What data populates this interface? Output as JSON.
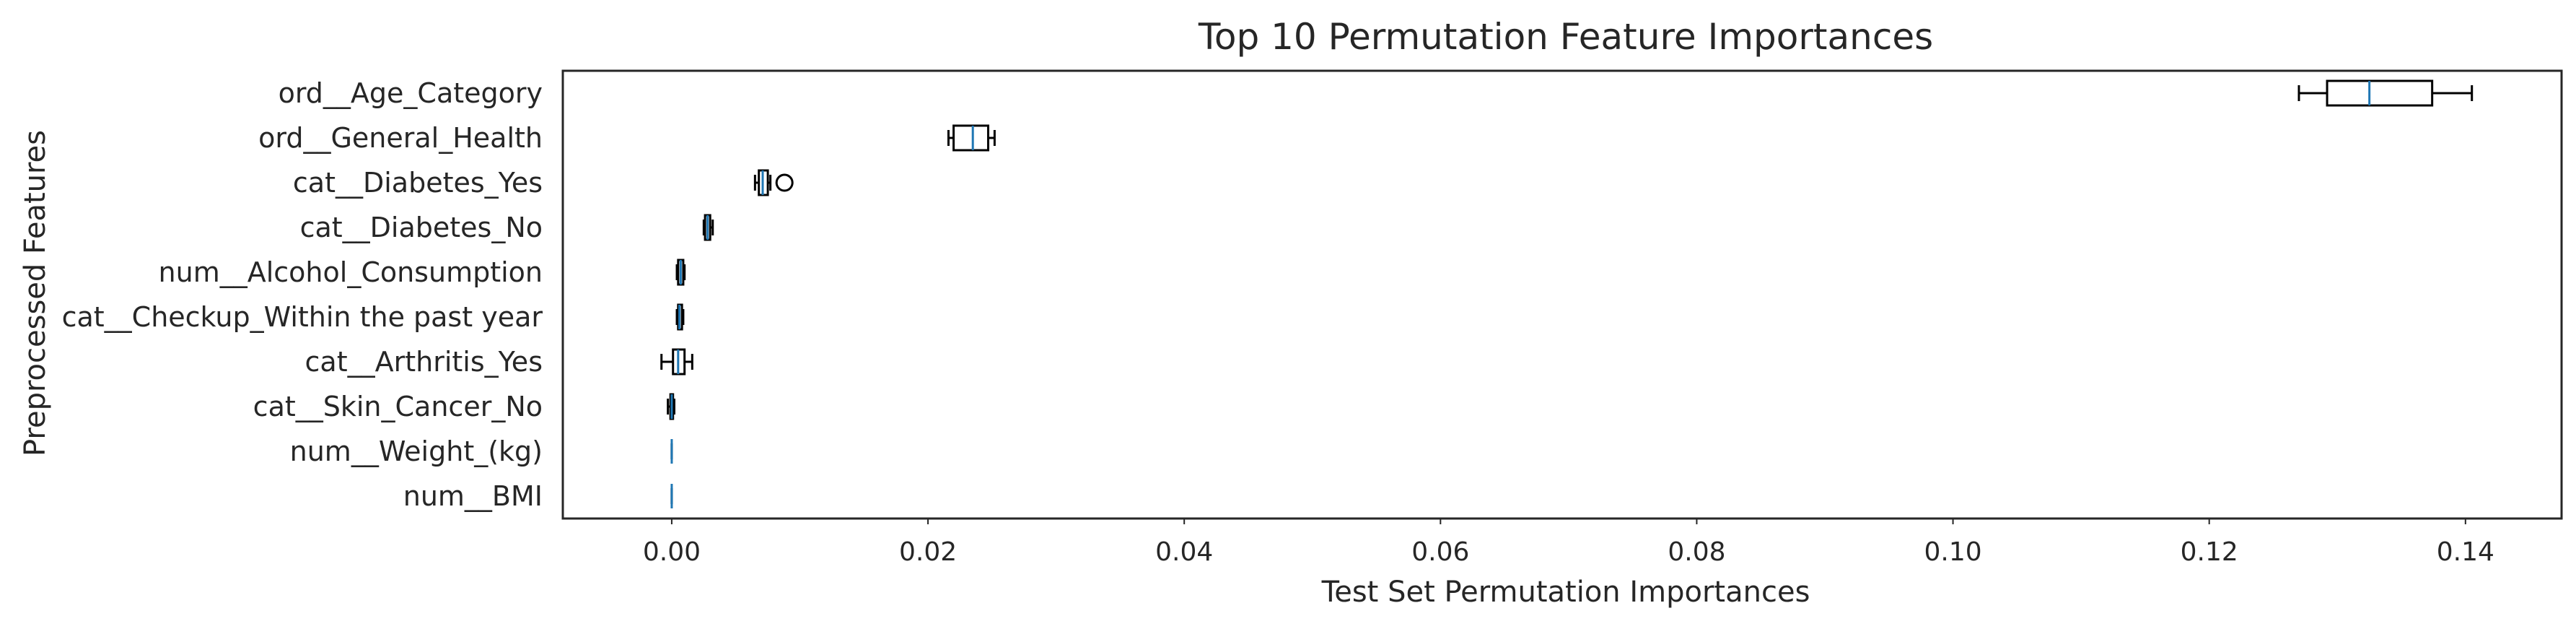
{
  "chart_data": {
    "type": "boxplot",
    "orientation": "horizontal",
    "title": "Top 10 Permutation Feature Importances",
    "xlabel": "Test Set Permutation Importances",
    "ylabel": "Preprocessed Features",
    "xlim": [
      -0.0085,
      0.1475
    ],
    "xticks": [
      0.0,
      0.02,
      0.04,
      0.06,
      0.08,
      0.1,
      0.12,
      0.14
    ],
    "xtick_labels": [
      "0.00",
      "0.02",
      "0.04",
      "0.06",
      "0.08",
      "0.10",
      "0.12",
      "0.14"
    ],
    "grid": false,
    "features": [
      {
        "name": "ord__Age_Category",
        "whisker_low": 0.127,
        "q1": 0.1292,
        "median": 0.1325,
        "q3": 0.1374,
        "whisker_high": 0.1405,
        "fliers": []
      },
      {
        "name": "ord__General_Health",
        "whisker_low": 0.0216,
        "q1": 0.022,
        "median": 0.0235,
        "q3": 0.0247,
        "whisker_high": 0.0252,
        "fliers": []
      },
      {
        "name": "cat__Diabetes_Yes",
        "whisker_low": 0.0065,
        "q1": 0.0068,
        "median": 0.0071,
        "q3": 0.0075,
        "whisker_high": 0.0077,
        "fliers": [
          0.0088
        ]
      },
      {
        "name": "cat__Diabetes_No",
        "whisker_low": 0.0025,
        "q1": 0.0026,
        "median": 0.0028,
        "q3": 0.003,
        "whisker_high": 0.0032,
        "fliers": []
      },
      {
        "name": "num__Alcohol_Consumption",
        "whisker_low": 0.0004,
        "q1": 0.0005,
        "median": 0.0007,
        "q3": 0.0009,
        "whisker_high": 0.001,
        "fliers": []
      },
      {
        "name": "cat__Checkup_Within the past year",
        "whisker_low": 0.0004,
        "q1": 0.0005,
        "median": 0.0006,
        "q3": 0.0008,
        "whisker_high": 0.0009,
        "fliers": []
      },
      {
        "name": "cat__Arthritis_Yes",
        "whisker_low": -0.0008,
        "q1": 0.0001,
        "median": 0.0005,
        "q3": 0.001,
        "whisker_high": 0.0016,
        "fliers": []
      },
      {
        "name": "cat__Skin_Cancer_No",
        "whisker_low": -0.0003,
        "q1": -0.0001,
        "median": 0.0,
        "q3": 0.0001,
        "whisker_high": 0.0002,
        "fliers": []
      },
      {
        "name": "num__Weight_(kg)",
        "whisker_low": 0.0,
        "q1": 0.0,
        "median": 0.0,
        "q3": 0.0,
        "whisker_high": 0.0,
        "fliers": []
      },
      {
        "name": "num__BMI",
        "whisker_low": 0.0,
        "q1": 0.0,
        "median": 0.0,
        "q3": 0.0,
        "whisker_high": 0.0,
        "fliers": []
      }
    ],
    "colors": {
      "box": "#000000",
      "median": "#1f77b4",
      "frame": "#262626"
    }
  }
}
